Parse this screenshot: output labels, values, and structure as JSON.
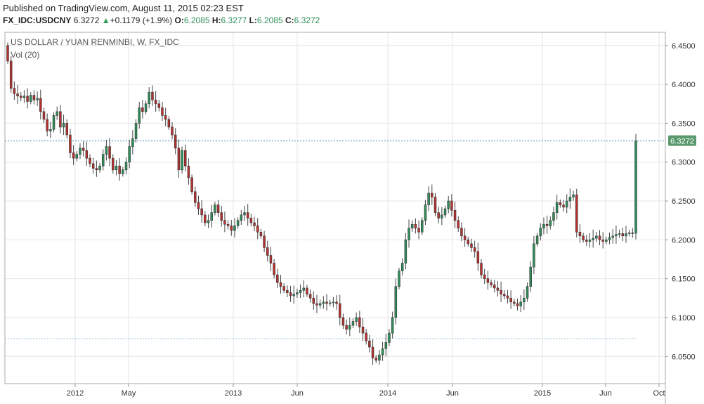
{
  "header": {
    "published": "Published on TradingView.com, August 11, 2015 02:23 EST",
    "symbol": "FX_IDC:USDCNY",
    "last": "6.3272",
    "change_arrow": "▲",
    "change": "+0.1179 (+1.9%)",
    "o_label": "O:",
    "o_value": "6.2085",
    "h_label": "H:",
    "h_value": "6.3277",
    "l_label": "L:",
    "l_value": "6.2085",
    "c_label": "C:",
    "c_value": "6.3272"
  },
  "colors": {
    "up": "#2f8f5a",
    "down": "#b7312f",
    "price_line": "#3b8bb5",
    "grid": "#e6e6e6"
  },
  "chart_data": {
    "type": "candlestick",
    "title": "US DOLLAR / YUAN RENMINBI, W, FX_IDC",
    "indicator": "Vol (20)",
    "last_price_label": "6.3272",
    "ylim": [
      6.015,
      6.467
    ],
    "y_ticks": [
      "6.4500",
      "6.4000",
      "6.3500",
      "6.3000",
      "6.2500",
      "6.2000",
      "6.1500",
      "6.1000",
      "6.0500"
    ],
    "x_ticks": [
      "2012",
      "May",
      "2013",
      "Jun",
      "2014",
      "Jun",
      "2015",
      "Jun",
      "Oct"
    ],
    "reference_line": 6.073,
    "grid": true,
    "close_series": [
      6.43,
      6.395,
      6.388,
      6.385,
      6.383,
      6.385,
      6.378,
      6.386,
      6.38,
      6.382,
      6.365,
      6.355,
      6.34,
      6.342,
      6.36,
      6.365,
      6.345,
      6.35,
      6.335,
      6.312,
      6.305,
      6.31,
      6.318,
      6.315,
      6.305,
      6.298,
      6.292,
      6.29,
      6.295,
      6.31,
      6.32,
      6.305,
      6.29,
      6.295,
      6.285,
      6.29,
      6.3,
      6.32,
      6.33,
      6.35,
      6.37,
      6.365,
      6.375,
      6.39,
      6.38,
      6.375,
      6.37,
      6.36,
      6.355,
      6.345,
      6.335,
      6.318,
      6.29,
      6.315,
      6.295,
      6.28,
      6.262,
      6.248,
      6.24,
      6.232,
      6.222,
      6.225,
      6.235,
      6.245,
      6.235,
      6.225,
      6.22,
      6.218,
      6.212,
      6.218,
      6.225,
      6.232,
      6.235,
      6.228,
      6.222,
      6.218,
      6.21,
      6.205,
      6.19,
      6.18,
      6.17,
      6.155,
      6.145,
      6.14,
      6.135,
      6.132,
      6.128,
      6.13,
      6.132,
      6.135,
      6.138,
      6.13,
      6.125,
      6.118,
      6.116,
      6.118,
      6.12,
      6.118,
      6.119,
      6.12,
      6.118,
      6.1,
      6.09,
      6.085,
      6.09,
      6.095,
      6.1,
      6.088,
      6.08,
      6.07,
      6.062,
      6.048,
      6.045,
      6.052,
      6.06,
      6.068,
      6.08,
      6.1,
      6.14,
      6.16,
      6.17,
      6.2,
      6.215,
      6.22,
      6.215,
      6.21,
      6.225,
      6.245,
      6.26,
      6.255,
      6.235,
      6.228,
      6.232,
      6.24,
      6.25,
      6.238,
      6.225,
      6.215,
      6.205,
      6.2,
      6.195,
      6.19,
      6.185,
      6.17,
      6.155,
      6.15,
      6.145,
      6.142,
      6.138,
      6.135,
      6.13,
      6.128,
      6.125,
      6.12,
      6.118,
      6.115,
      6.12,
      6.125,
      6.14,
      6.165,
      6.195,
      6.205,
      6.215,
      6.22,
      6.218,
      6.225,
      6.235,
      6.248,
      6.245,
      6.242,
      6.25,
      6.255,
      6.258,
      6.21,
      6.205,
      6.2,
      6.198,
      6.2,
      6.202,
      6.205,
      6.2,
      6.198,
      6.2,
      6.203,
      6.205,
      6.207,
      6.208,
      6.205,
      6.208,
      6.209,
      6.2085,
      6.3272
    ]
  }
}
